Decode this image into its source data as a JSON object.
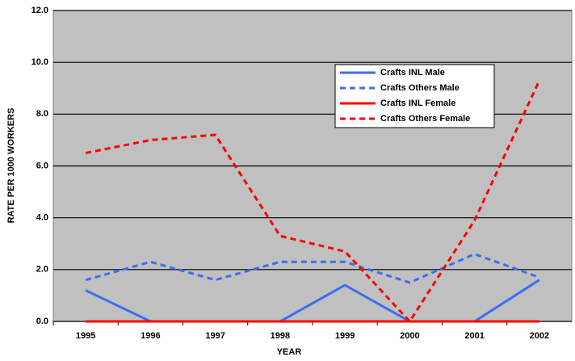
{
  "chart_data": {
    "type": "line",
    "x_label": "YEAR",
    "y_label": "RATE PER 1000 WORKERS",
    "categories": [
      "1995",
      "1996",
      "1997",
      "1998",
      "1999",
      "2000",
      "2001",
      "2002"
    ],
    "series": [
      {
        "name": "Crafts INL Male",
        "color": "#3c6ef0",
        "dash": "solid",
        "values": [
          1.2,
          0,
          0,
          0,
          1.4,
          0,
          0,
          1.6
        ]
      },
      {
        "name": "Crafts Others Male",
        "color": "#3c6ef0",
        "dash": "dashed",
        "values": [
          1.6,
          2.3,
          1.6,
          2.3,
          2.3,
          1.5,
          2.6,
          1.7
        ]
      },
      {
        "name": "Crafts INL Female",
        "color": "#ff0000",
        "dash": "solid",
        "values": [
          0,
          0,
          0,
          0,
          0,
          0,
          0,
          0
        ]
      },
      {
        "name": "Crafts Others Female",
        "color": "#ff0000",
        "dash": "dashed",
        "values": [
          6.5,
          7.0,
          7.2,
          3.3,
          2.7,
          0,
          3.9,
          9.3
        ]
      }
    ],
    "ylim": [
      0,
      12
    ],
    "yticks": [
      {
        "value": 0,
        "label": "0.0"
      },
      {
        "value": 2,
        "label": "2.0"
      },
      {
        "value": 4,
        "label": "4.0"
      },
      {
        "value": 6,
        "label": "6.0"
      },
      {
        "value": 8,
        "label": "8.0"
      },
      {
        "value": 10,
        "label": "10.0"
      },
      {
        "value": 12,
        "label": "12.0"
      }
    ],
    "grid": true,
    "legend": "upper right"
  }
}
